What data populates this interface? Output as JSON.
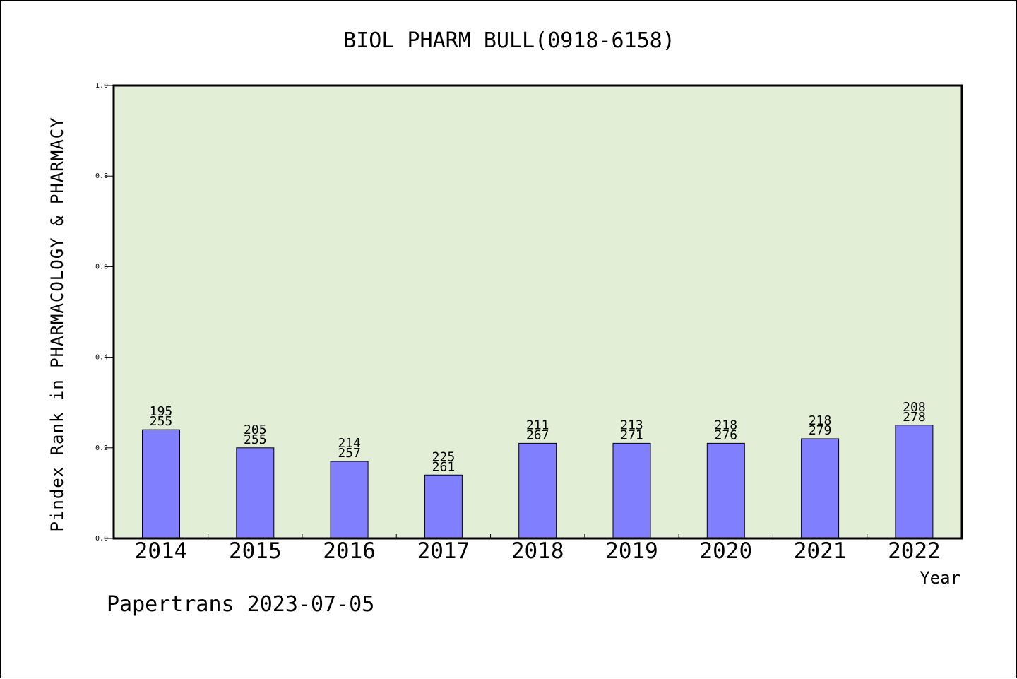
{
  "chart_data": {
    "type": "bar",
    "title": "BIOL PHARM BULL(0918-6158)",
    "ylabel": "Pindex Rank in PHARMACOLOGY & PHARMACY",
    "xlabel": "Year",
    "categories": [
      "2014",
      "2015",
      "2016",
      "2017",
      "2018",
      "2019",
      "2020",
      "2021",
      "2022"
    ],
    "values": [
      0.24,
      0.2,
      0.17,
      0.14,
      0.21,
      0.21,
      0.21,
      0.22,
      0.25
    ],
    "rank_labels": [
      "195",
      "205",
      "214",
      "225",
      "211",
      "213",
      "218",
      "218",
      "208"
    ],
    "total_labels": [
      "255",
      "255",
      "257",
      "261",
      "267",
      "271",
      "276",
      "279",
      "278"
    ],
    "ylim": [
      0,
      1.0
    ],
    "yticks": [
      "0.0",
      "0.2",
      "0.4",
      "0.6",
      "0.8",
      "1.0"
    ],
    "grid": false,
    "colors": {
      "plot_bg": "#e2efd6",
      "bar": "#8080ff",
      "bar_edge": "#000000"
    }
  },
  "footer": "Papertrans 2023-07-05"
}
